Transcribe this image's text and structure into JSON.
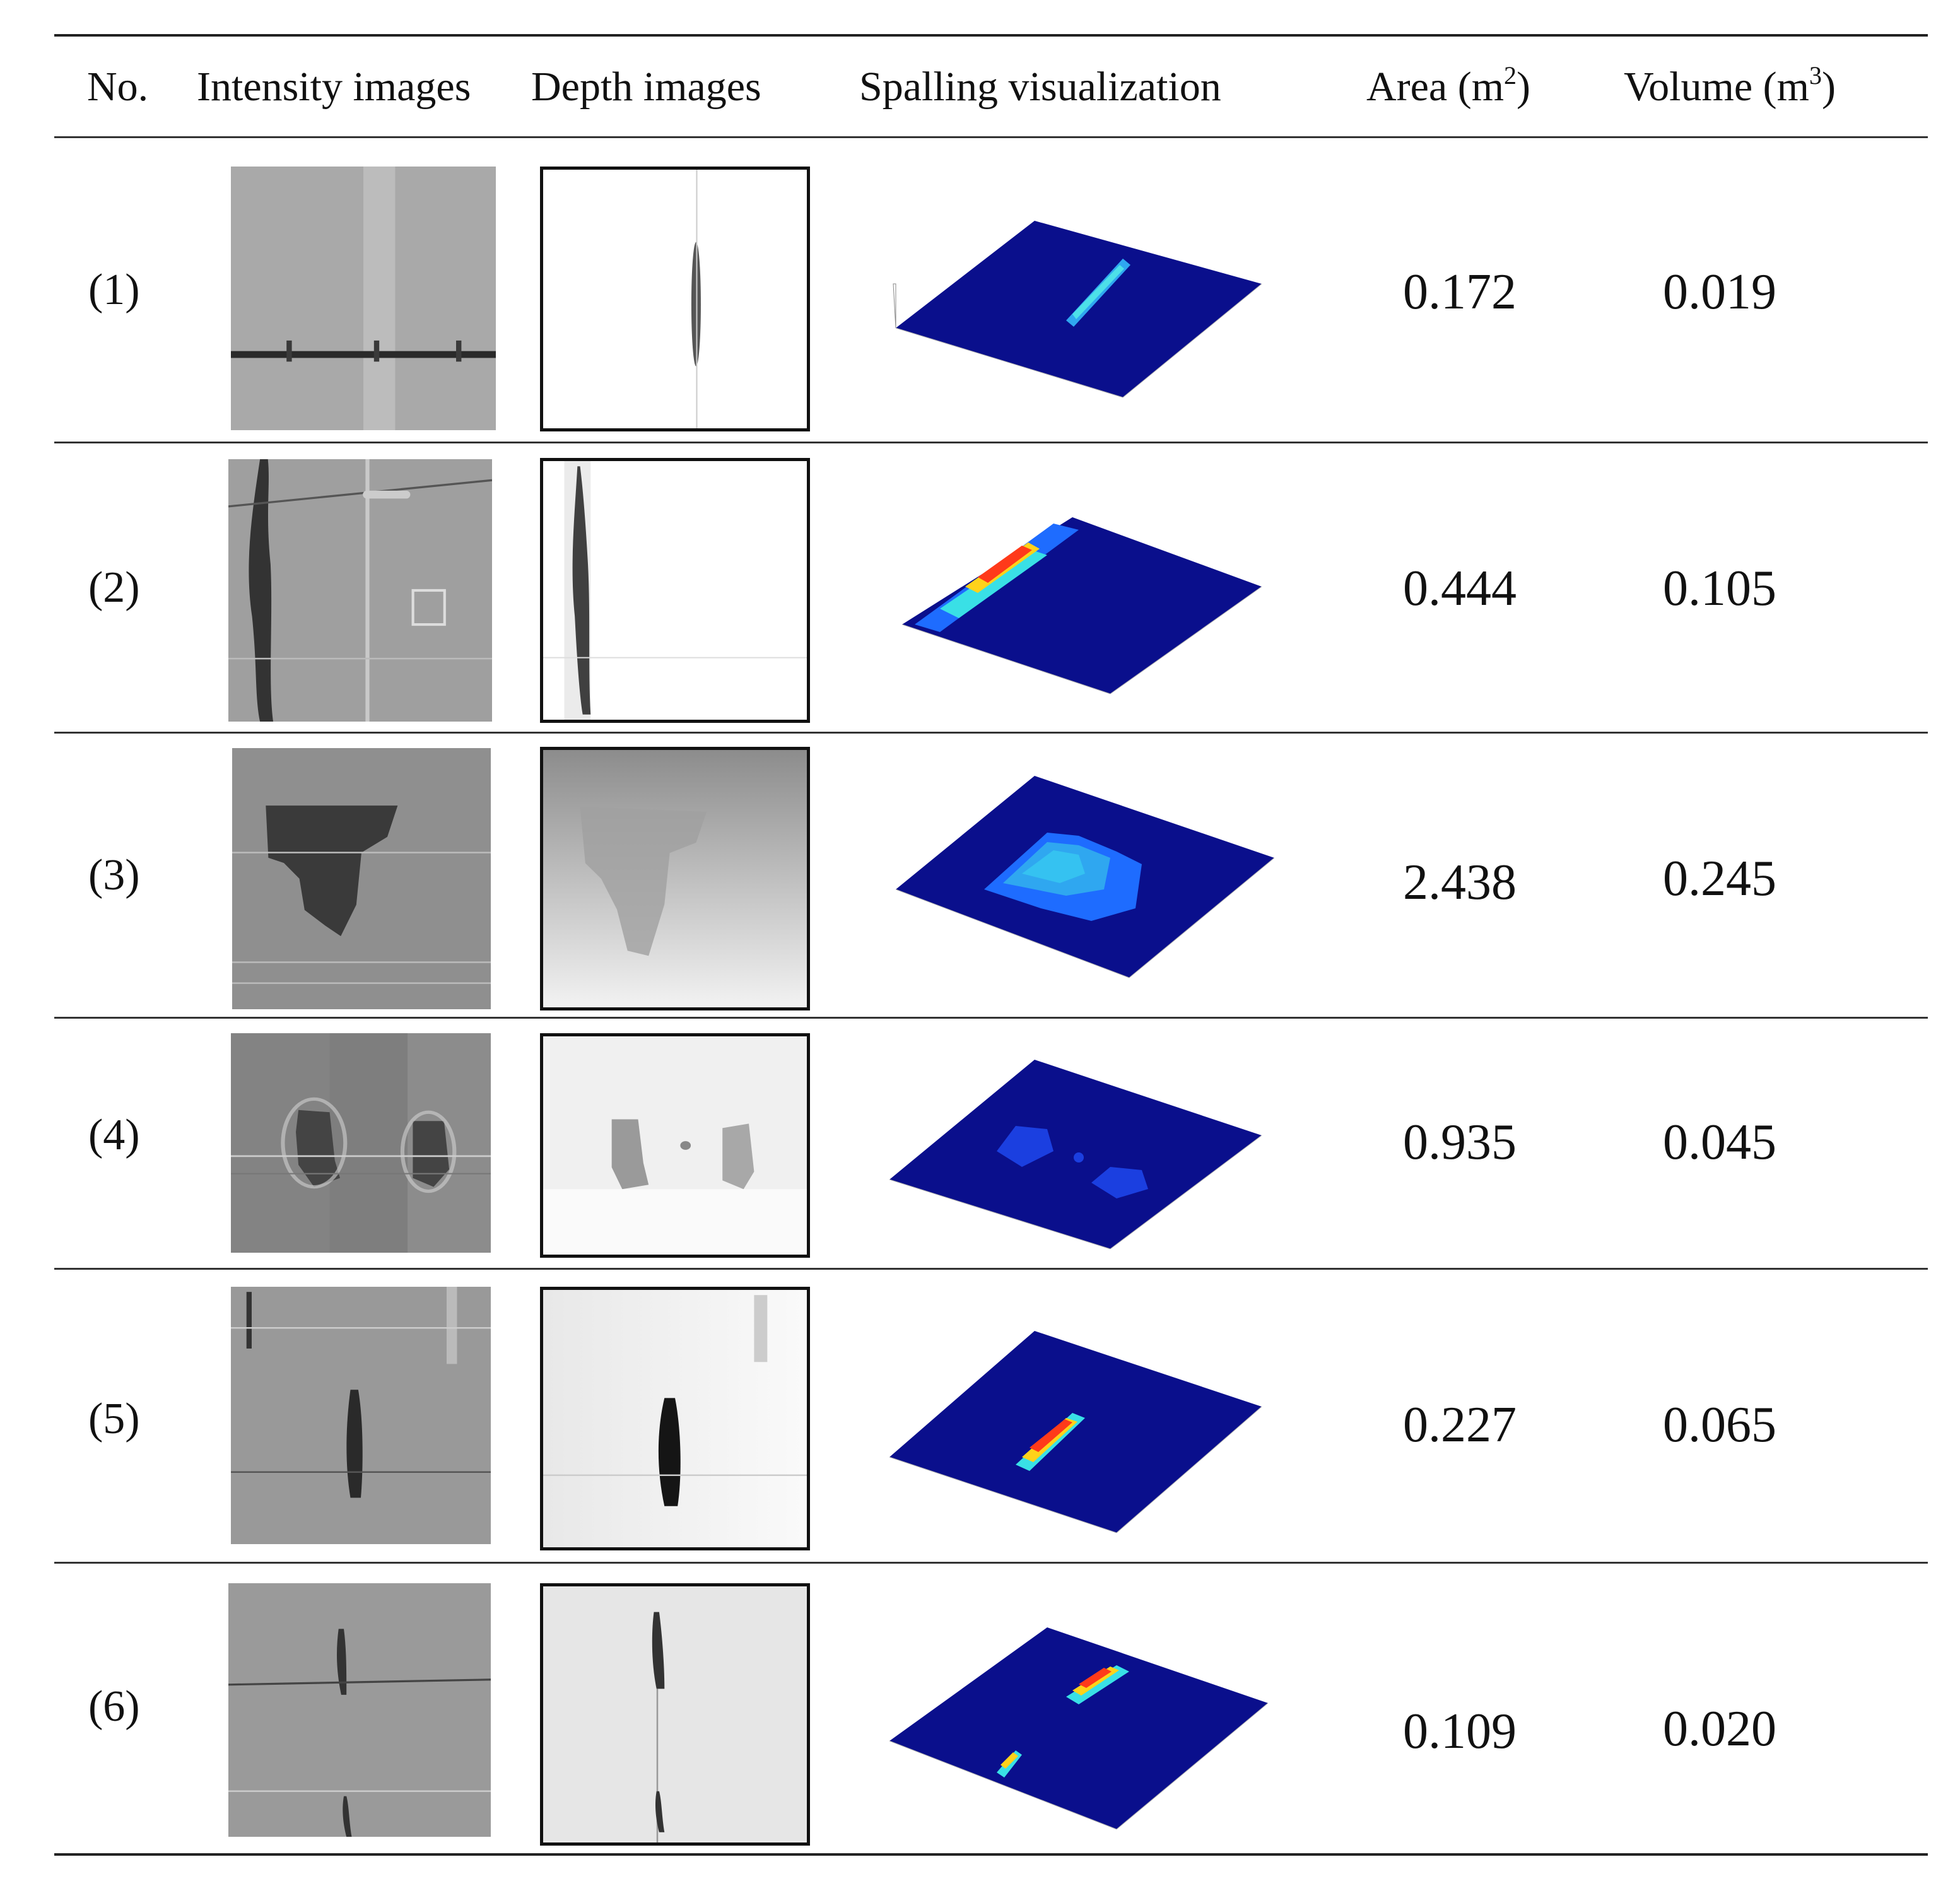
{
  "header": {
    "no": "No.",
    "intensity": "Intensity images",
    "depth": "Depth images",
    "spalling": "Spalling visualization",
    "area_label": "Area (m",
    "area_exp": "2",
    "area_close": ")",
    "volume_label": "Volume (m",
    "volume_exp": "3",
    "volume_close": ")"
  },
  "rows": [
    {
      "no": "(1)",
      "area": "0.172",
      "volume": "0.019"
    },
    {
      "no": "(2)",
      "area": "0.444",
      "volume": "0.105"
    },
    {
      "no": "(3)",
      "area": "2.438",
      "volume": "0.245"
    },
    {
      "no": "(4)",
      "area": "0.935",
      "volume": "0.045"
    },
    {
      "no": "(5)",
      "area": "0.227",
      "volume": "0.065"
    },
    {
      "no": "(6)",
      "area": "0.109",
      "volume": "0.020"
    }
  ],
  "colors": {
    "surface": "#0a0f8c",
    "spall_low": "#1e6cff",
    "spall_mid": "#39e0e6",
    "spall_high": "#ff3a1a"
  }
}
